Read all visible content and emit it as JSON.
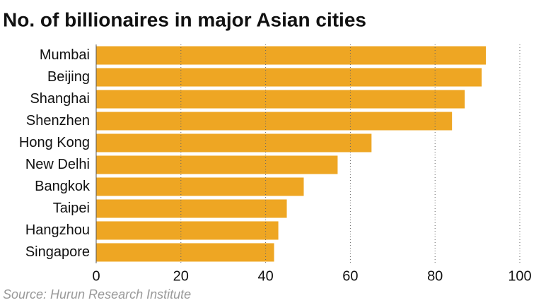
{
  "chart_data": {
    "type": "bar",
    "orientation": "horizontal",
    "title": "No. of billionaires in major Asian cities",
    "source": "Source: Hurun Research Institute",
    "categories": [
      "Mumbai",
      "Beijing",
      "Shanghai",
      "Shenzhen",
      "Hong Kong",
      "New Delhi",
      "Bangkok",
      "Taipei",
      "Hangzhou",
      "Singapore"
    ],
    "values": [
      92,
      91,
      87,
      84,
      65,
      57,
      49,
      45,
      43,
      42
    ],
    "color": "#eea623",
    "xlim": [
      0,
      100
    ],
    "xticks": [
      0,
      20,
      40,
      60,
      80,
      100
    ],
    "grid": true
  }
}
